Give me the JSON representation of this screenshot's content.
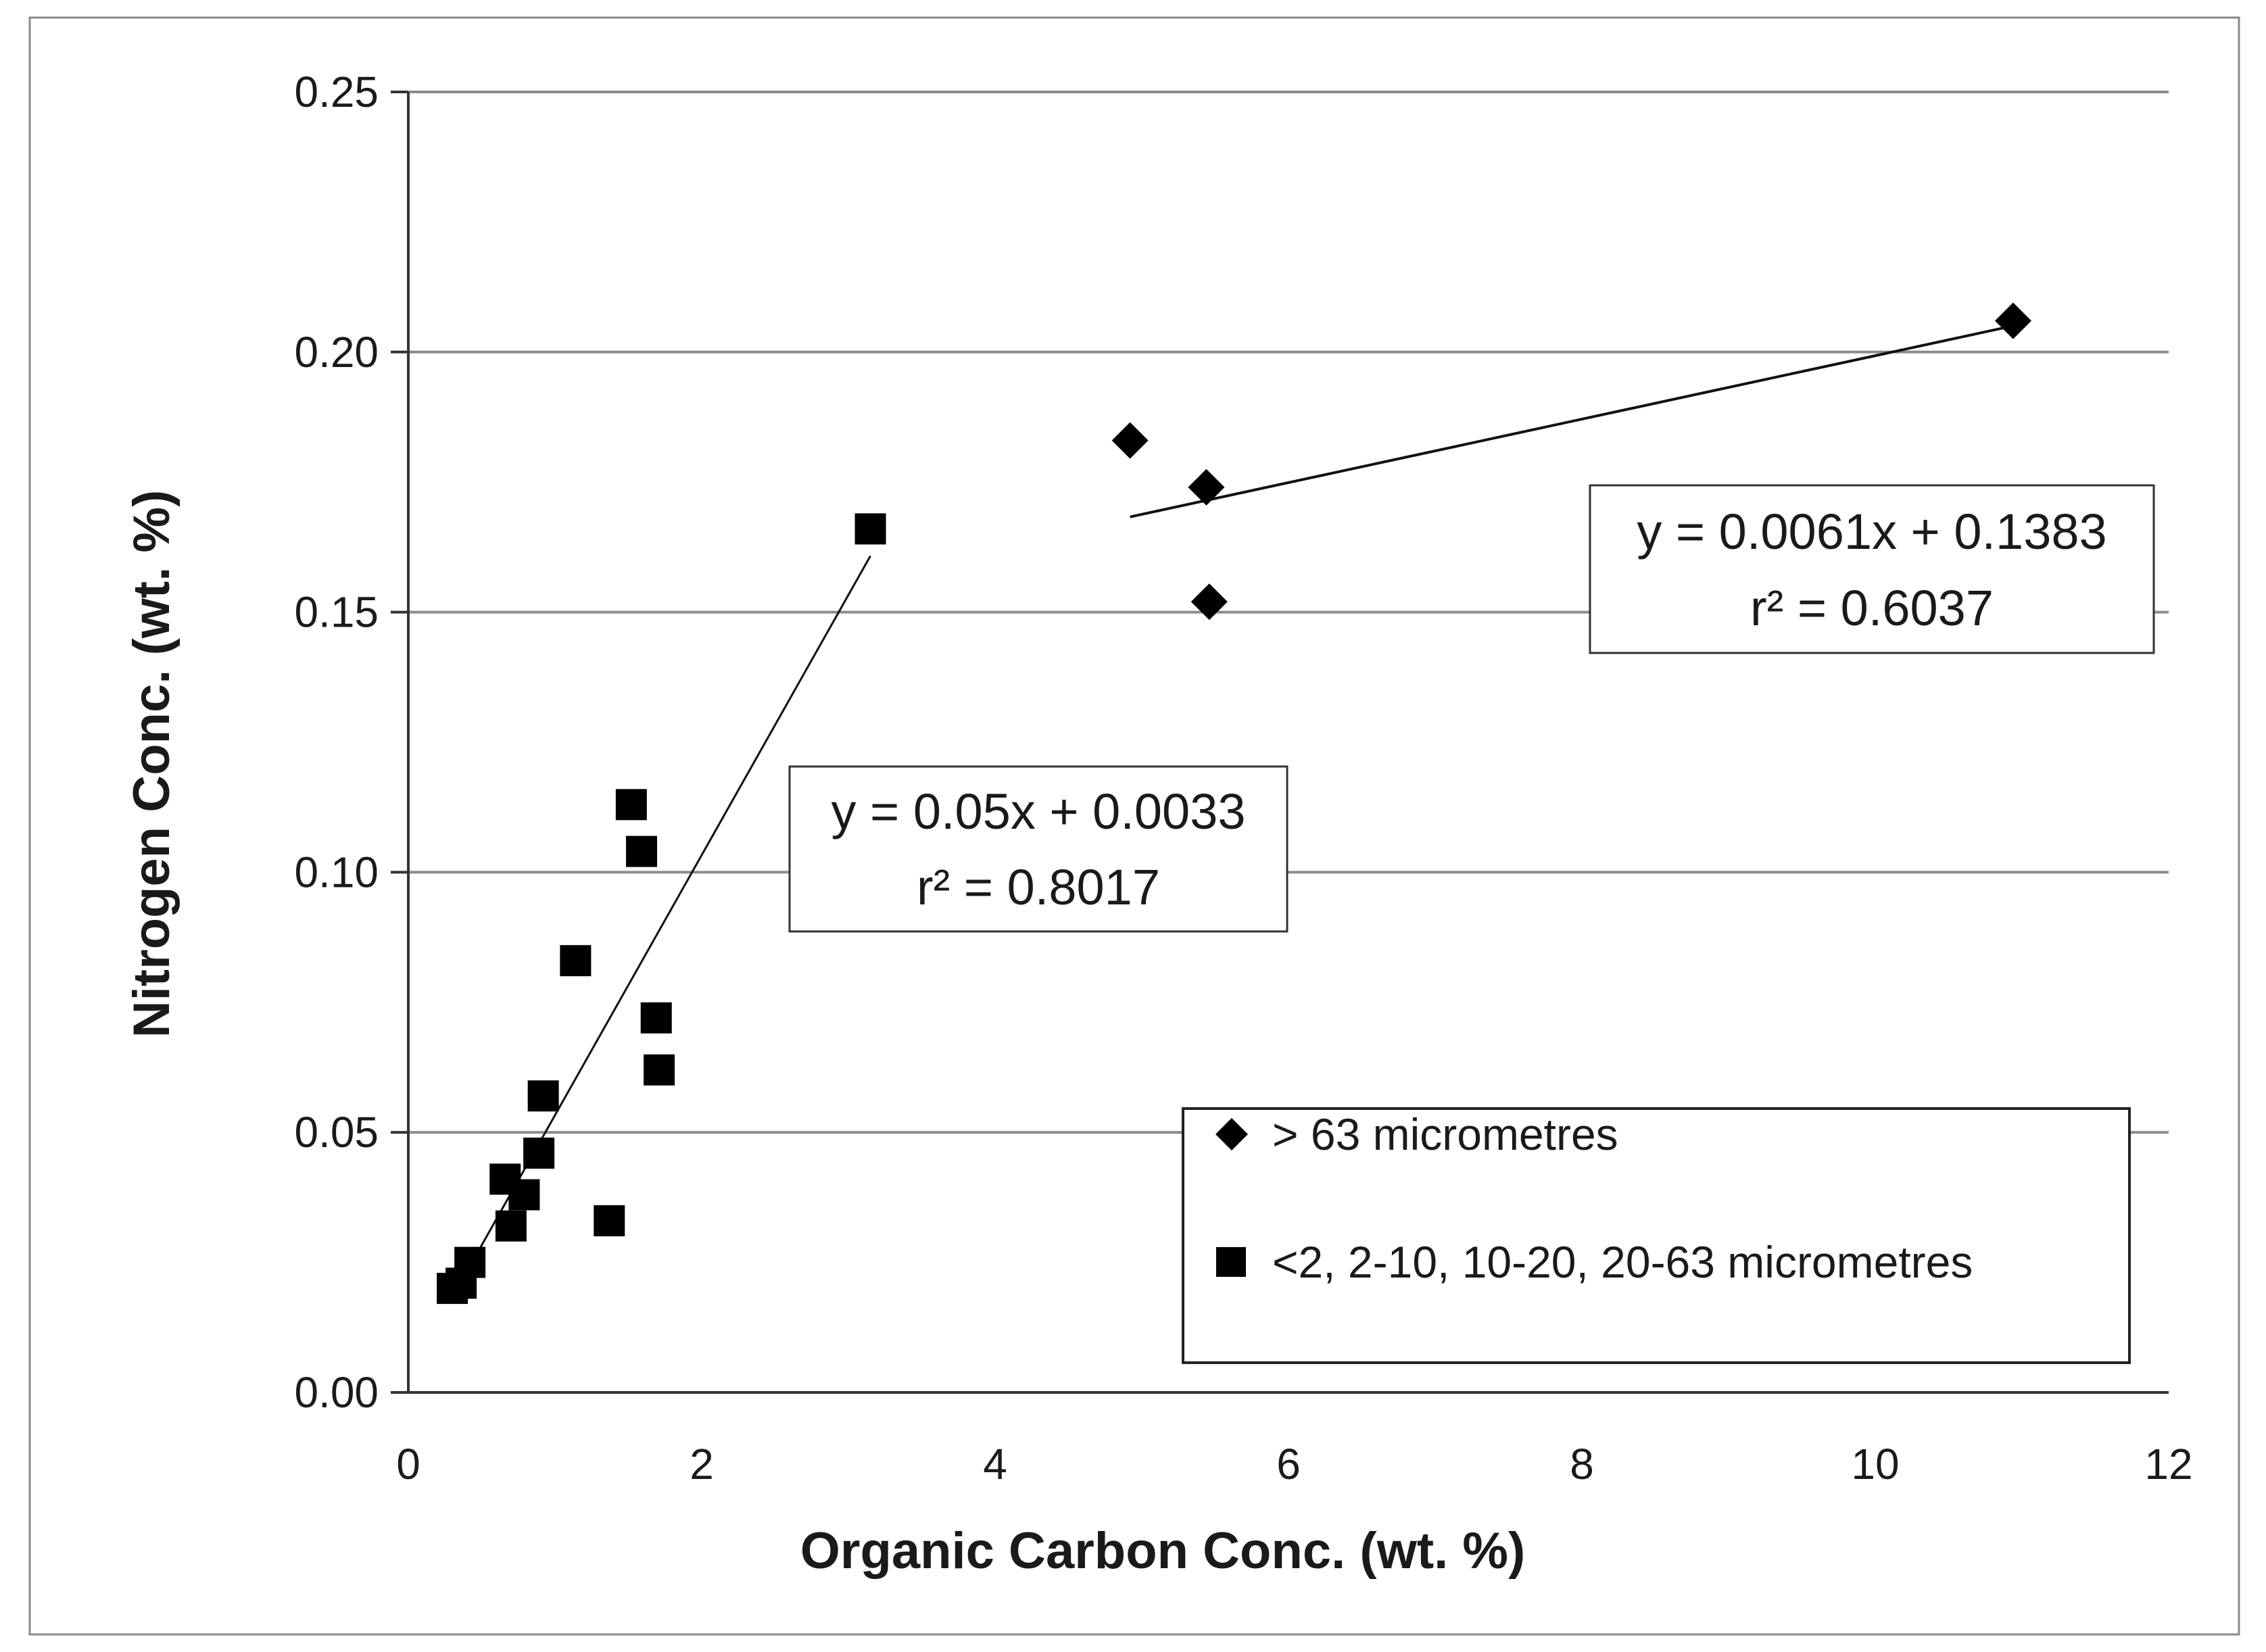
{
  "chart_data": {
    "type": "scatter",
    "title": "",
    "xlabel": "Organic Carbon Conc. (wt. %)",
    "ylabel": "Nitrogen Conc. (wt. %)",
    "xlim": [
      0,
      12
    ],
    "ylim": [
      0,
      0.25
    ],
    "x_ticks": [
      0,
      2,
      4,
      6,
      8,
      10,
      12
    ],
    "x_tick_labels": [
      "0",
      "2",
      "4",
      "6",
      "8",
      "10",
      "12"
    ],
    "y_ticks": [
      0,
      0.05,
      0.1,
      0.15,
      0.2,
      0.25
    ],
    "y_tick_labels": [
      "0.00",
      "0.05",
      "0.10",
      "0.15",
      "0.20",
      "0.25"
    ],
    "grid": "horizontal",
    "legend_position": "bottom-right",
    "series": [
      {
        "name": "> 63 micrometres",
        "marker": "diamond",
        "color": "#000000",
        "points": [
          {
            "x": 4.92,
            "y": 0.183
          },
          {
            "x": 5.44,
            "y": 0.174
          },
          {
            "x": 5.46,
            "y": 0.152
          },
          {
            "x": 10.94,
            "y": 0.206
          }
        ],
        "trendline": {
          "slope": 0.0061,
          "intercept": 0.1383,
          "x_range": [
            4.92,
            10.94
          ]
        },
        "equation": "y = 0.0061x + 0.1383",
        "r2": "r² = 0.6037"
      },
      {
        "name": "<2, 2-10, 10-20, 20-63 micrometres",
        "marker": "square",
        "color": "#000000",
        "points": [
          {
            "x": 0.3,
            "y": 0.02
          },
          {
            "x": 0.36,
            "y": 0.021
          },
          {
            "x": 0.42,
            "y": 0.025
          },
          {
            "x": 0.66,
            "y": 0.041
          },
          {
            "x": 0.7,
            "y": 0.032
          },
          {
            "x": 0.79,
            "y": 0.038
          },
          {
            "x": 0.89,
            "y": 0.046
          },
          {
            "x": 0.92,
            "y": 0.057
          },
          {
            "x": 1.14,
            "y": 0.083
          },
          {
            "x": 1.37,
            "y": 0.033
          },
          {
            "x": 1.52,
            "y": 0.113
          },
          {
            "x": 1.59,
            "y": 0.104
          },
          {
            "x": 1.69,
            "y": 0.072
          },
          {
            "x": 1.71,
            "y": 0.062
          },
          {
            "x": 3.15,
            "y": 0.166
          }
        ],
        "trendline": {
          "slope": 0.05,
          "intercept": 0.0033,
          "x_range": [
            0.42,
            3.15
          ]
        },
        "equation": "y = 0.05x + 0.0033",
        "r2": "r² = 0.8017"
      }
    ]
  }
}
